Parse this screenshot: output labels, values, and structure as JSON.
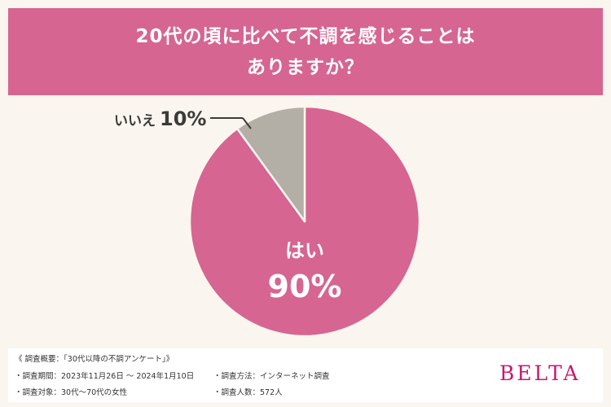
{
  "header": {
    "line1": "20代の頃に比べて不調を感じることは",
    "line2": "ありますか？"
  },
  "chart_data": {
    "type": "pie",
    "title": "20代の頃に比べて不調を感じることはありますか？",
    "slices": [
      {
        "label": "はい",
        "value": 90,
        "value_text": "90%",
        "color": "#d66592"
      },
      {
        "label": "いいえ",
        "value": 10,
        "value_text": "10%",
        "color": "#b3aea6"
      }
    ]
  },
  "footer": {
    "overview": "《 調査概要：「30代以降の不調アンケート」》",
    "period": "・調査期間：2023年11月26日 〜 2024年1月10日",
    "method": "・調査方法：インターネット調査",
    "target": "・調査対象：30代〜70代の女性",
    "count": "・調査人数：572人",
    "logo": "BELTA"
  }
}
